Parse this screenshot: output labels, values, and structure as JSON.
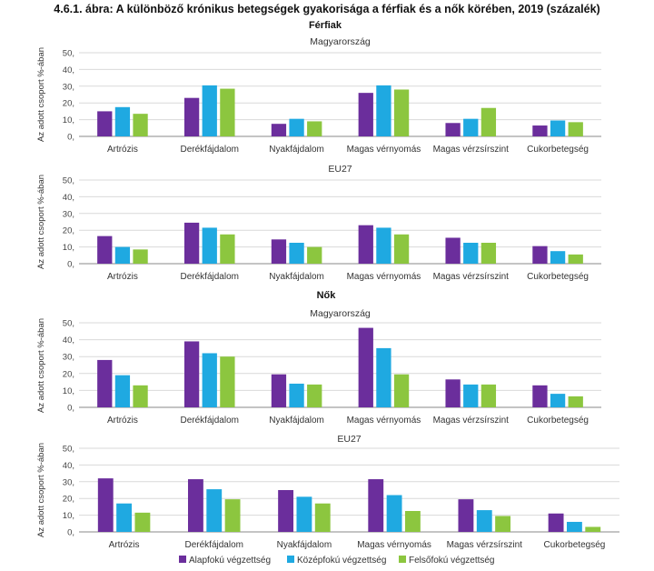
{
  "colors": {
    "alap": "#6B2E9C",
    "kozep": "#1FA9E1",
    "felso": "#8CC63F"
  },
  "chart_data": {
    "type": "bar",
    "title": "4.6.1. ábra: A különböző krónikus betegségek gyakorisága a férfiak és a nők körében, 2019 (százalék)",
    "ylabel": "Az adott csoport %-ában",
    "ylim": [
      0,
      50
    ],
    "yticks": [
      "0,",
      "10,",
      "20,",
      "30,",
      "40,",
      "50,"
    ],
    "categories": [
      "Artrózis",
      "Derékfájdalom",
      "Nyakfájdalom",
      "Magas vérnyomás",
      "Magas vérzsírszint",
      "Cukorbetegség"
    ],
    "legend": [
      "Alapfokú végzettség",
      "Középfokú végzettség",
      "Felsőfokú végzettség"
    ],
    "legend_position": "bottom",
    "groups": [
      {
        "label": "Férfiak",
        "panels": [
          {
            "subtitle": "Magyarország",
            "series": [
              {
                "name": "Alapfokú végzettség",
                "values": [
                  15,
                  23,
                  7.5,
                  26,
                  8,
                  6.5
                ]
              },
              {
                "name": "Középfokú végzettség",
                "values": [
                  17.5,
                  30.5,
                  10.5,
                  30.5,
                  10.5,
                  9.5
                ]
              },
              {
                "name": "Felsőfokú végzettség",
                "values": [
                  13.5,
                  28.5,
                  9,
                  28,
                  17,
                  8.5
                ]
              }
            ]
          },
          {
            "subtitle": "EU27",
            "series": [
              {
                "name": "Alapfokú végzettség",
                "values": [
                  16.5,
                  24.5,
                  14.5,
                  23,
                  15.5,
                  10.5
                ]
              },
              {
                "name": "Középfokú végzettség",
                "values": [
                  10,
                  21.5,
                  12.5,
                  21.5,
                  12.5,
                  7.5
                ]
              },
              {
                "name": "Felsőfokú végzettség",
                "values": [
                  8.5,
                  17.5,
                  10,
                  17.5,
                  12.5,
                  5.5
                ]
              }
            ]
          }
        ]
      },
      {
        "label": "Nők",
        "panels": [
          {
            "subtitle": "Magyarország",
            "series": [
              {
                "name": "Alapfokú végzettség",
                "values": [
                  28,
                  39,
                  19.5,
                  47,
                  16.5,
                  13
                ]
              },
              {
                "name": "Középfokú végzettség",
                "values": [
                  19,
                  32,
                  14,
                  35,
                  13.5,
                  8
                ]
              },
              {
                "name": "Felsőfokú végzettség",
                "values": [
                  13,
                  30,
                  13.5,
                  19.5,
                  13.5,
                  6.5
                ]
              }
            ]
          },
          {
            "subtitle": "EU27",
            "series": [
              {
                "name": "Alapfokú végzettség",
                "values": [
                  32,
                  31.5,
                  25,
                  31.5,
                  19.5,
                  11
                ]
              },
              {
                "name": "Középfokú végzettség",
                "values": [
                  17,
                  25.5,
                  21,
                  22,
                  13,
                  6
                ]
              },
              {
                "name": "Felsőfokú végzettség",
                "values": [
                  11.5,
                  19.5,
                  17,
                  12.5,
                  9.5,
                  3
                ]
              }
            ]
          }
        ]
      }
    ]
  }
}
